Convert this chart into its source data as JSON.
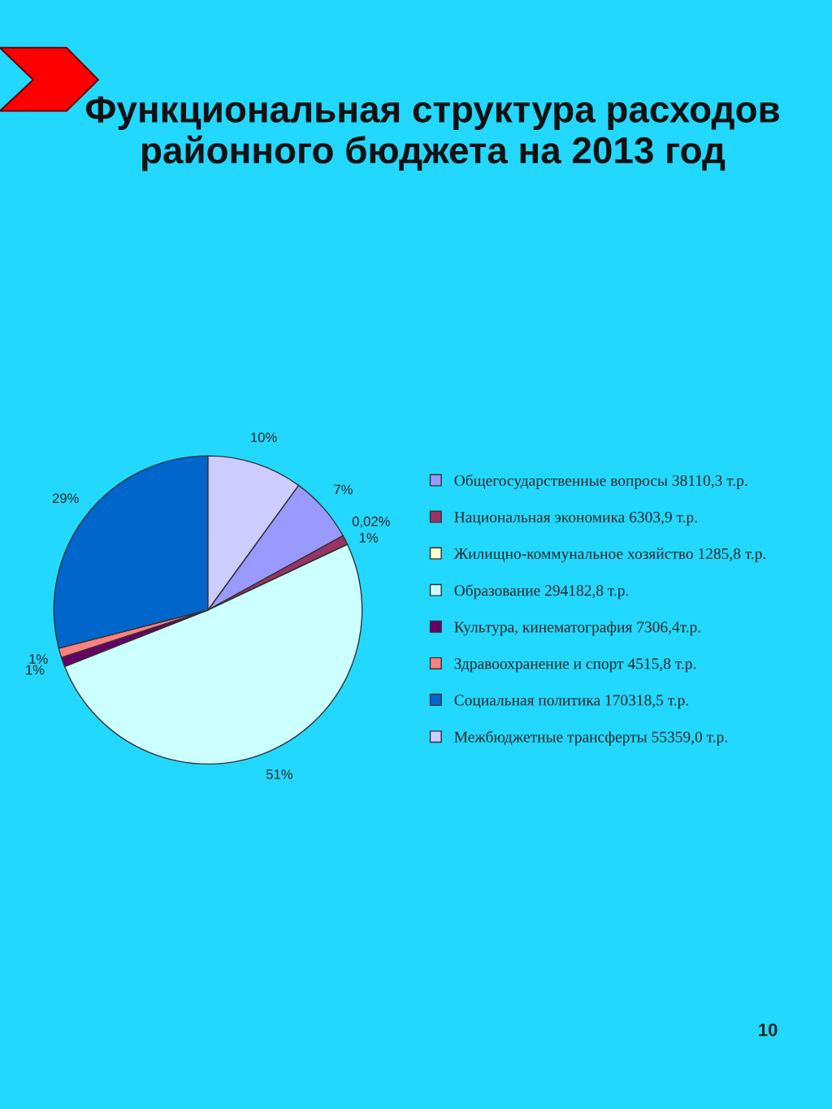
{
  "chart_data": {
    "type": "pie",
    "title": "Функциональная структура расходов районного бюджета на 2013 год",
    "categories": [
      "Общегосударственные вопросы 38110,3 т.р.",
      "Национальная экономика 6303,9 т.р.",
      "Жилищно-коммунальное хозяйство 1285,8 т.р.",
      "Образование 294182,8 т.р.",
      "Культура, кинематография 7306,4т.р.",
      "Здравоохранение и спорт 4515,8 т.р.",
      "Социальная политика 170318,5 т.р.",
      "Межбюджетные трансферты 55359,0 т.р."
    ],
    "values": [
      7,
      1,
      0.02,
      51,
      1,
      1,
      29,
      10
    ],
    "value_labels": [
      "7%",
      "1%",
      "0,02%",
      "51%",
      "1%",
      "1%",
      "29%",
      "10%"
    ],
    "colors": [
      "#9999ff",
      "#993366",
      "#ffffcc",
      "#ccffff",
      "#660066",
      "#ff8080",
      "#0066cc",
      "#ccccff"
    ],
    "legend": "right",
    "annotations": [
      "10"
    ]
  }
}
